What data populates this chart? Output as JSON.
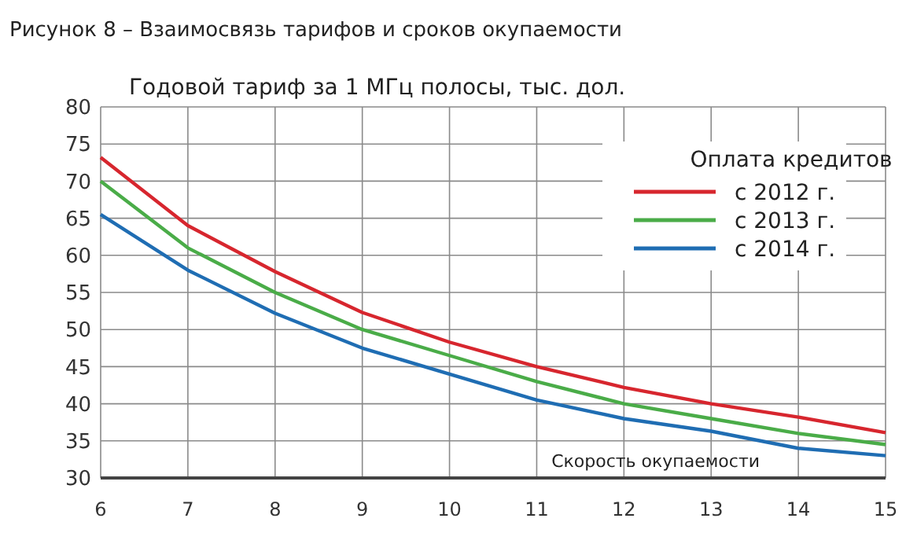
{
  "chart_data": {
    "type": "line",
    "title": "Рисунок 8 – Взаимосвязь тарифов и сроков окупаемости",
    "ylabel": "Годовой тариф за 1 МГц полосы, тыс. дол.",
    "xlabel": "Скорость окупаемости",
    "legend_title": "Оплата кредитов",
    "legend": "top right",
    "grid": true,
    "x": [
      6,
      7,
      8,
      9,
      10,
      11,
      12,
      13,
      14,
      15
    ],
    "xlim": [
      6,
      15
    ],
    "xticks": [
      6,
      7,
      8,
      9,
      10,
      11,
      12,
      13,
      14,
      15
    ],
    "ylim": [
      30,
      80
    ],
    "yticks": [
      30,
      35,
      40,
      45,
      50,
      55,
      60,
      65,
      70,
      75,
      80
    ],
    "series": [
      {
        "name": "с 2012 г.",
        "color": "#d7262e",
        "values": [
          73.2,
          64,
          57.8,
          52.3,
          48.3,
          45,
          42.2,
          40,
          38.2,
          36.1
        ]
      },
      {
        "name": "с 2013 г.",
        "color": "#4aac48",
        "values": [
          70,
          61,
          55,
          50,
          46.5,
          43,
          40,
          38,
          36,
          34.5
        ]
      },
      {
        "name": "с 2014 г.",
        "color": "#1f6db3",
        "values": [
          65.5,
          58,
          52.2,
          47.5,
          44,
          40.5,
          38,
          36.3,
          34,
          33
        ]
      }
    ]
  }
}
